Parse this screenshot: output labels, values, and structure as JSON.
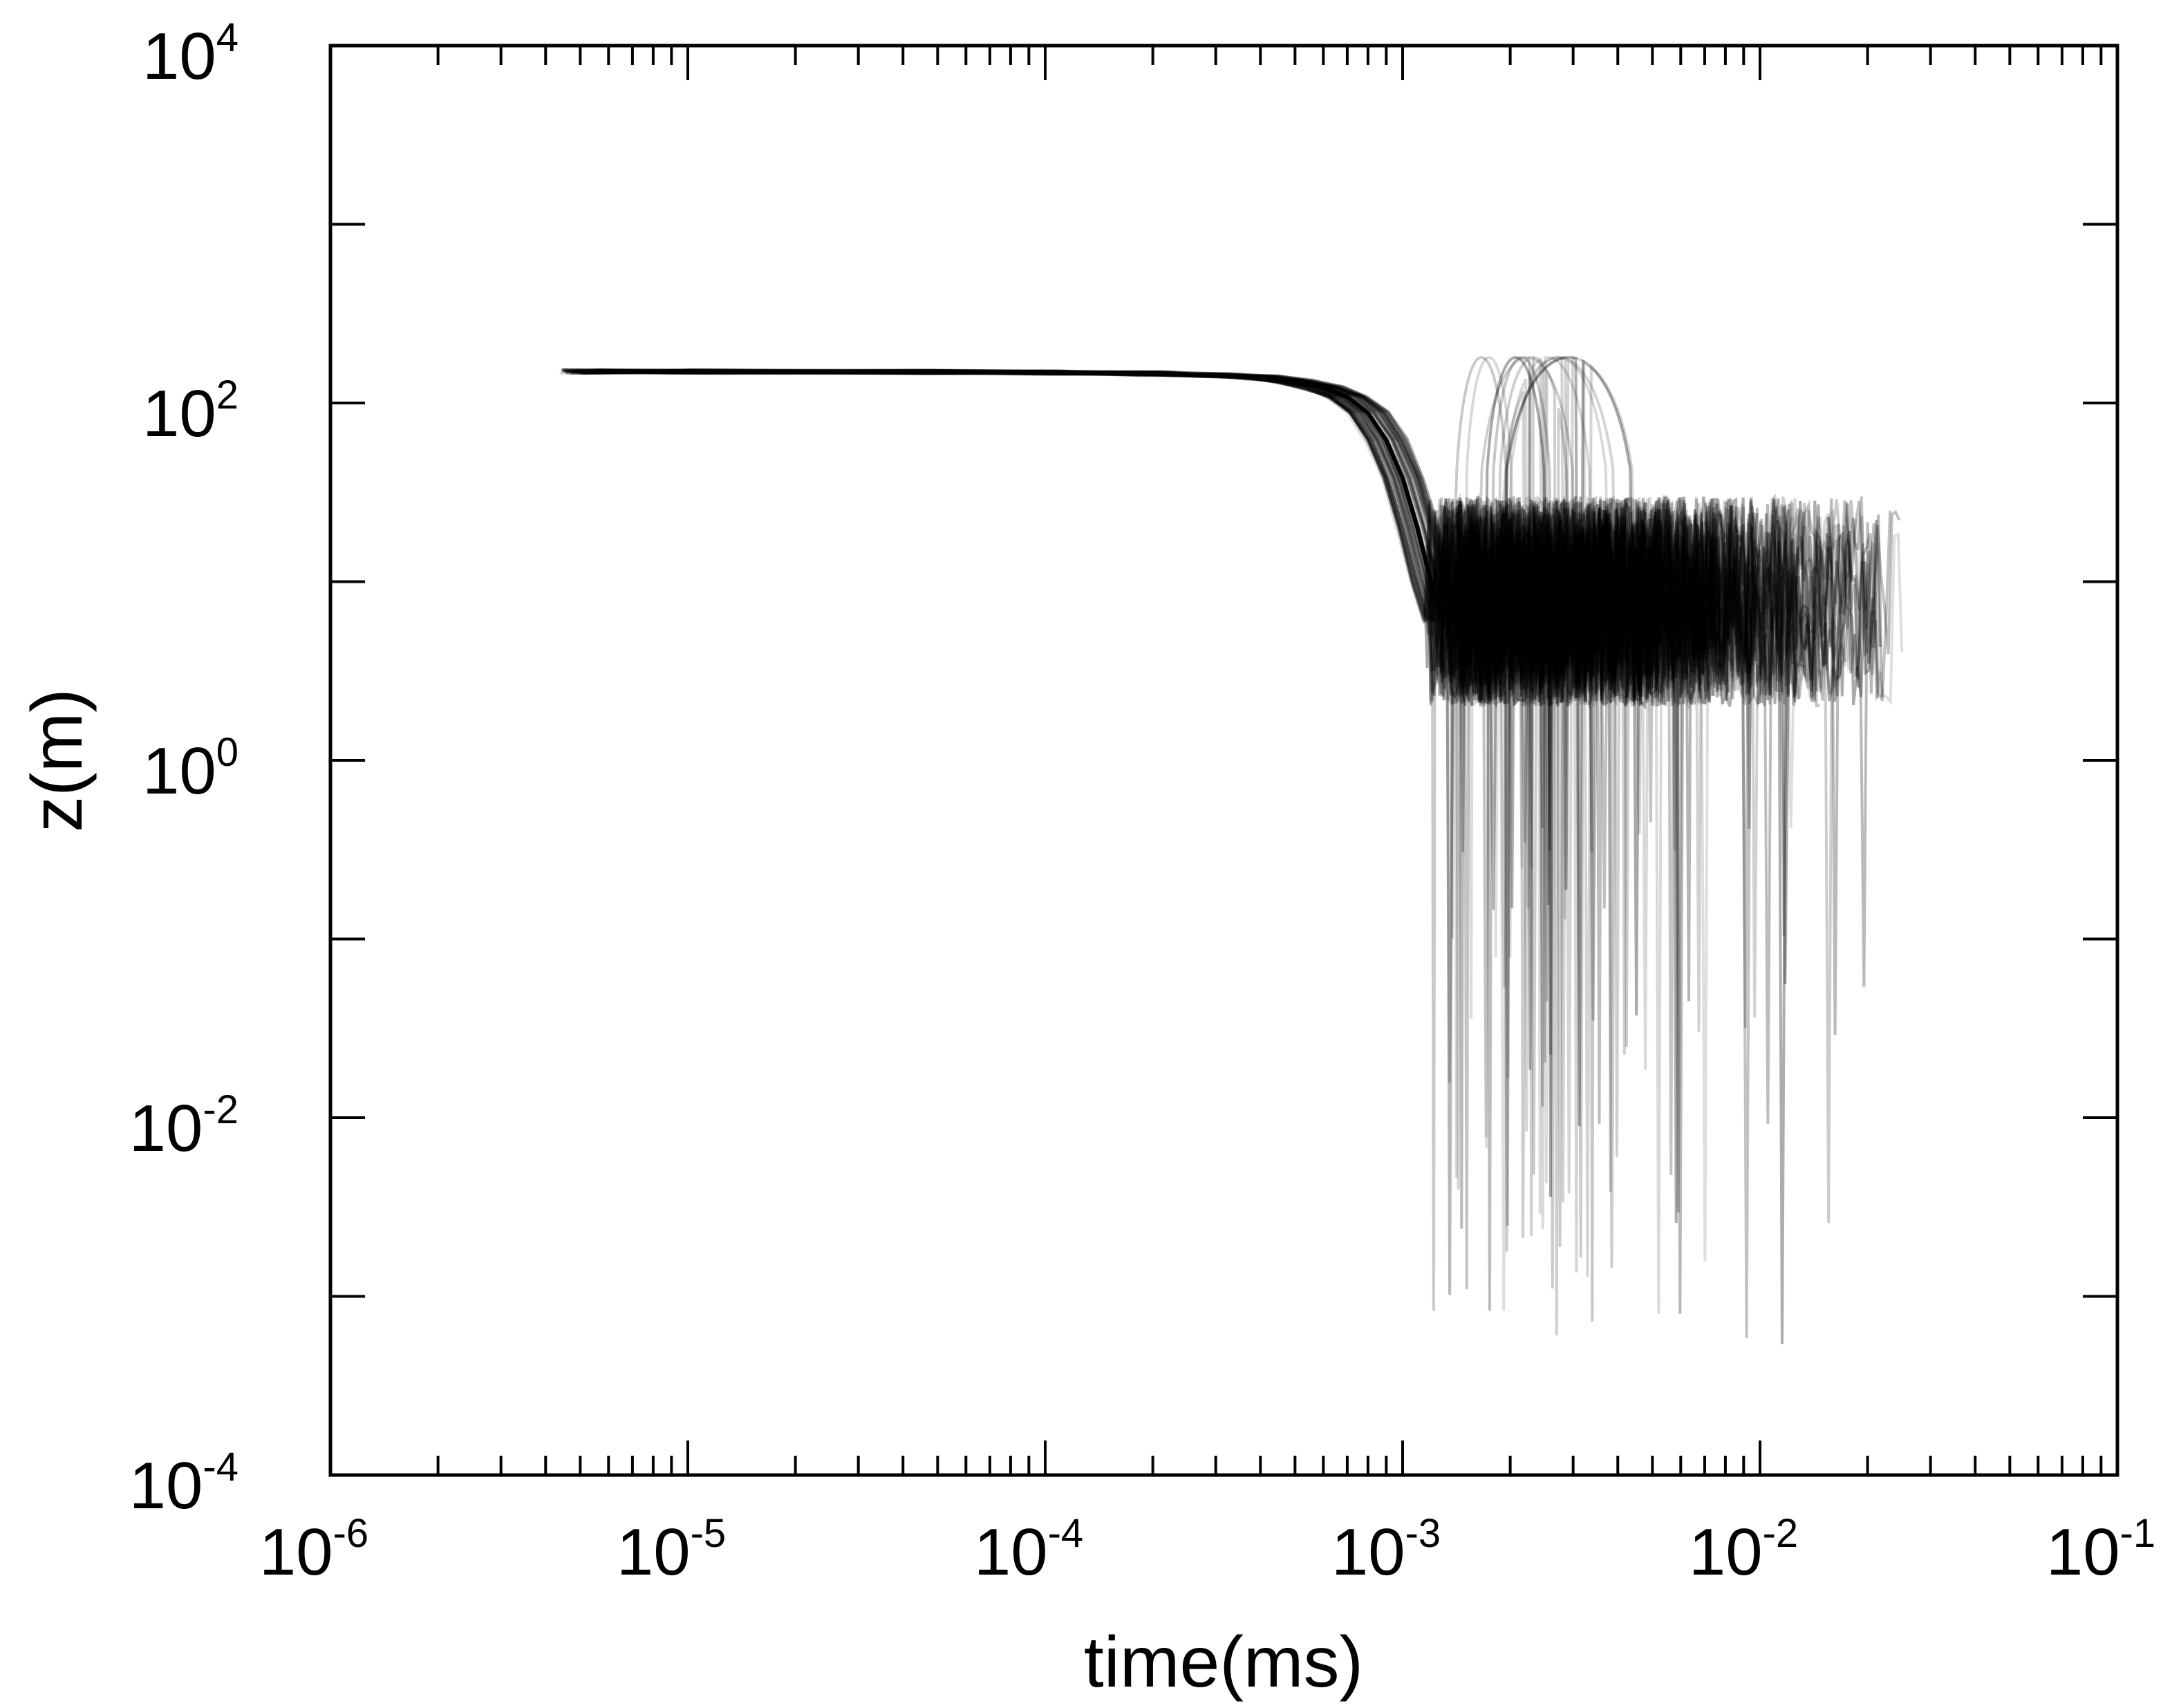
{
  "chart_data": {
    "type": "line",
    "title": "",
    "xlabel": "time(ms)",
    "ylabel": "z(m)",
    "x_scale": "log",
    "y_scale": "log",
    "xlim": [
      1e-06,
      0.1
    ],
    "ylim": [
      0.0001,
      10000.0
    ],
    "grid": false,
    "legend": "none",
    "line_color": "#000000",
    "x_ticks": [
      {
        "base": "10",
        "exp": "-6",
        "value": 1e-06
      },
      {
        "base": "10",
        "exp": "-5",
        "value": 1e-05
      },
      {
        "base": "10",
        "exp": "-4",
        "value": 0.0001
      },
      {
        "base": "10",
        "exp": "-3",
        "value": 0.001
      },
      {
        "base": "10",
        "exp": "-2",
        "value": 0.01
      },
      {
        "base": "10",
        "exp": "-1",
        "value": 0.1
      }
    ],
    "y_ticks": [
      {
        "base": "10",
        "exp": "-4",
        "value": 0.0001
      },
      {
        "base": "10",
        "exp": "-2",
        "value": 0.01
      },
      {
        "base": "10",
        "exp": "0",
        "value": 1
      },
      {
        "base": "10",
        "exp": "2",
        "value": 100
      },
      {
        "base": "10",
        "exp": "4",
        "value": 10000
      }
    ],
    "y_minor_ticks": [
      0.001,
      0.1,
      10,
      1000
    ],
    "main_curve": {
      "x": [
        5e-06,
        1e-05,
        5e-05,
        0.0001,
        0.0002,
        0.0003,
        0.0004,
        0.0005,
        0.0006,
        0.0007,
        0.0008,
        0.0009,
        0.001,
        0.0011,
        0.0012,
        0.0013
      ],
      "y": [
        150,
        150,
        149,
        148,
        146,
        143,
        139,
        132,
        122,
        108,
        88,
        62,
        38,
        20,
        10,
        6
      ]
    },
    "ensemble": {
      "count": 60,
      "y_band_range": [
        2,
        30
      ],
      "x_end_range": [
        0.0035,
        0.025
      ],
      "max_height": 250,
      "min_depth": 0.0005
    }
  }
}
